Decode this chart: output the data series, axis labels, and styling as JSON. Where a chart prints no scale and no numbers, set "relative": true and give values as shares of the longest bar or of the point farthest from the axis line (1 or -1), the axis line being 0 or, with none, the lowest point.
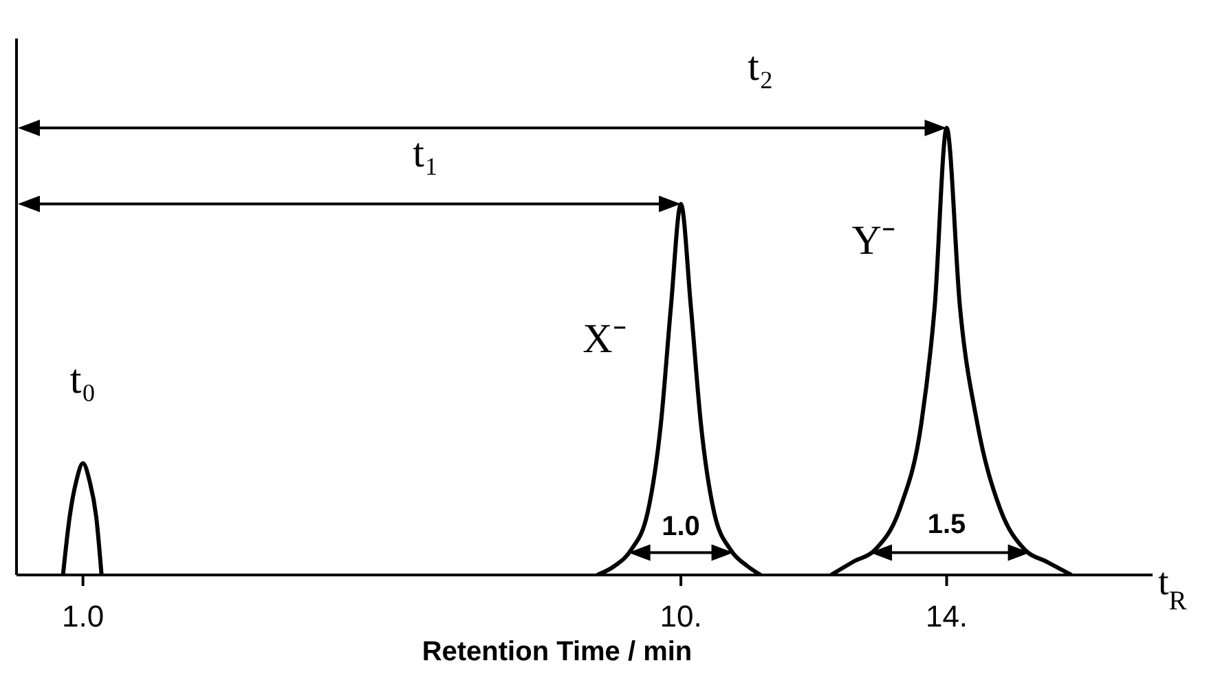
{
  "chart_data": {
    "type": "line",
    "relative": true,
    "xlabel": "Retention Time / min",
    "xlim": [
      0,
      17.1
    ],
    "xticks": [
      {
        "value": 1,
        "label": "1.0"
      },
      {
        "value": 10,
        "label": "10."
      },
      {
        "value": 14,
        "label": "14."
      }
    ],
    "color": "#000000",
    "series": [
      {
        "color": "#000000",
        "x": [
          0.7,
          0.8,
          0.9,
          1.0,
          1.1,
          1.2,
          1.28
        ],
        "values": [
          0,
          0.13,
          0.21,
          0.25,
          0.21,
          0.13,
          0
        ]
      },
      {
        "color": "#000000",
        "x": [
          8.74,
          9.0,
          9.25,
          9.5,
          9.7,
          9.85,
          10,
          10.15,
          10.3,
          10.5,
          10.75,
          11.0,
          11.2
        ],
        "values": [
          0,
          0.02,
          0.056,
          0.14,
          0.34,
          0.6,
          0.83,
          0.6,
          0.34,
          0.14,
          0.056,
          0.02,
          0
        ]
      },
      {
        "color": "#000000",
        "x": [
          12.26,
          12.6,
          12.92,
          13.3,
          13.62,
          13.82,
          14,
          14.2,
          14.46,
          14.8,
          15.18,
          15.5,
          15.88
        ],
        "values": [
          0,
          0.03,
          0.056,
          0.15,
          0.34,
          0.6,
          1,
          0.6,
          0.34,
          0.15,
          0.056,
          0.03,
          0
        ]
      }
    ],
    "annotations": [
      "t₀",
      "X⁻",
      "Y⁻",
      "t₁",
      "t₂",
      "1.0",
      "1.5",
      "t$_{R}$"
    ]
  }
}
